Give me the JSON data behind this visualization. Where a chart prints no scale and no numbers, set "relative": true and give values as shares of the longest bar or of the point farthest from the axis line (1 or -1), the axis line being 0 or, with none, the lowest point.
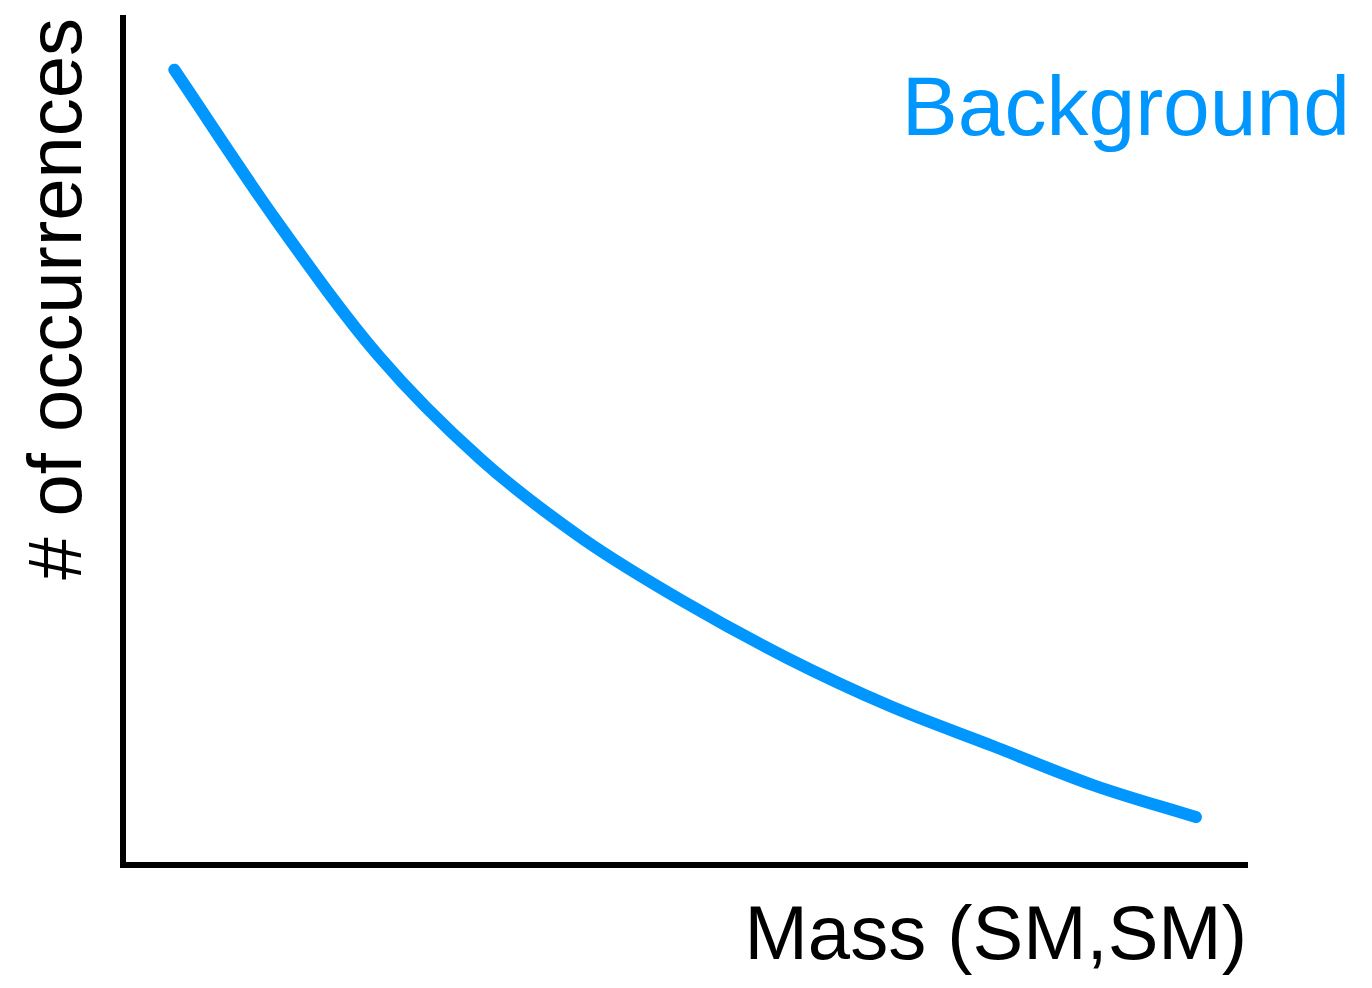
{
  "chart_data": {
    "type": "line",
    "xlabel": "Mass (SM,SM)",
    "ylabel": "# of occurrences",
    "relative": true,
    "categories": [
      null,
      null,
      null,
      null,
      null,
      null,
      null,
      null,
      null,
      null,
      null
    ],
    "series": [
      {
        "name": "Background",
        "color": "#0096ff",
        "values": [
          1.0,
          0.81,
          0.64,
          0.51,
          0.41,
          0.33,
          0.26,
          0.2,
          0.15,
          0.1,
          0.06
        ]
      }
    ],
    "grid": false,
    "legend": false,
    "tick_labels": false,
    "marker": "none",
    "line_style": "solid"
  }
}
